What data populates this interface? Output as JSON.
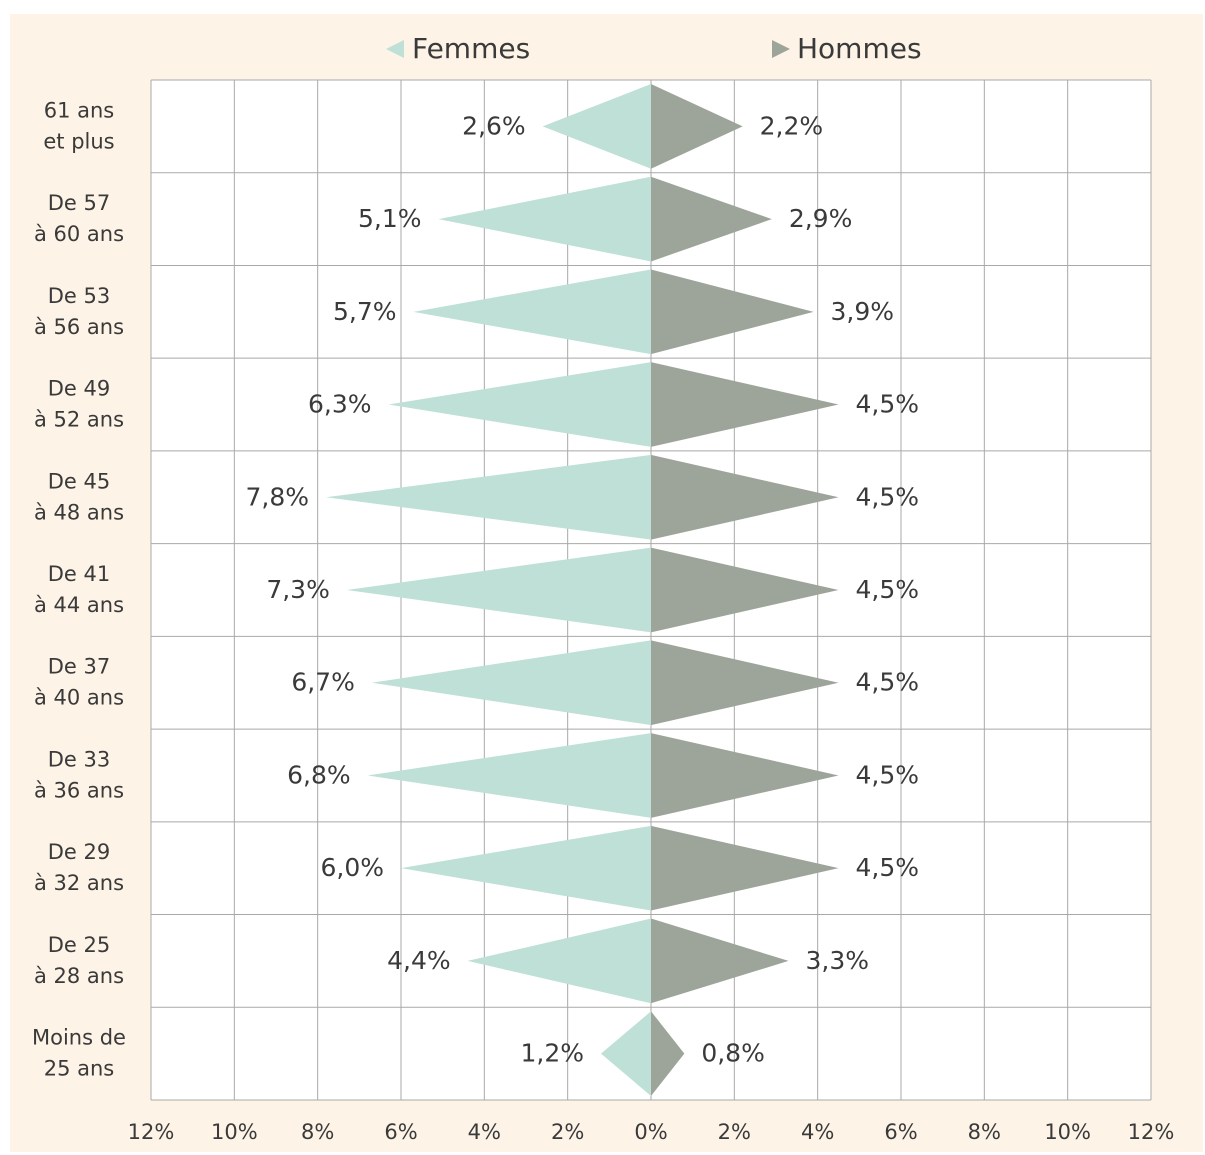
{
  "chart_data": {
    "type": "population-pyramid",
    "legend": {
      "placement": "top-center",
      "items": [
        {
          "name": "Femmes",
          "color": "#bfe0d7",
          "icon": "left-triangle-icon"
        },
        {
          "name": "Hommes",
          "color": "#9da59b",
          "icon": "right-triangle-icon"
        }
      ]
    },
    "categories": [
      [
        "61 ans",
        "et plus"
      ],
      [
        "De 57",
        "à 60 ans"
      ],
      [
        "De 53",
        "à 56 ans"
      ],
      [
        "De 49",
        "à 52 ans"
      ],
      [
        "De 45",
        "à 48 ans"
      ],
      [
        "De 41",
        "à 44 ans"
      ],
      [
        "De 37",
        "à 40 ans"
      ],
      [
        "De 33",
        "à 36 ans"
      ],
      [
        "De 29",
        "à 32 ans"
      ],
      [
        "De 25",
        "à 28 ans"
      ],
      [
        "Moins de",
        "25 ans"
      ]
    ],
    "series": [
      {
        "name": "Femmes",
        "color": "#bfe0d7",
        "values": [
          2.6,
          5.1,
          5.7,
          6.3,
          7.8,
          7.3,
          6.7,
          6.8,
          6.0,
          4.4,
          1.2
        ],
        "labels": [
          "2,6%",
          "5,1%",
          "5,7%",
          "6,3%",
          "7,8%",
          "7,3%",
          "6,7%",
          "6,8%",
          "6,0%",
          "4,4%",
          "1,2%"
        ]
      },
      {
        "name": "Hommes",
        "color": "#9da59b",
        "values": [
          2.2,
          2.9,
          3.9,
          4.5,
          4.5,
          4.5,
          4.5,
          4.5,
          4.5,
          3.3,
          0.8
        ],
        "labels": [
          "2,2%",
          "2,9%",
          "3,9%",
          "4,5%",
          "4,5%",
          "4,5%",
          "4,5%",
          "4,5%",
          "4,5%",
          "3,3%",
          "0,8%"
        ]
      }
    ],
    "x_ticks": [
      {
        "value": -12,
        "label": "12%"
      },
      {
        "value": -10,
        "label": "10%"
      },
      {
        "value": -8,
        "label": "8%"
      },
      {
        "value": -6,
        "label": "6%"
      },
      {
        "value": -4,
        "label": "4%"
      },
      {
        "value": -2,
        "label": "2%"
      },
      {
        "value": 0,
        "label": "0%"
      },
      {
        "value": 2,
        "label": "2%"
      },
      {
        "value": 4,
        "label": "4%"
      },
      {
        "value": 6,
        "label": "6%"
      },
      {
        "value": 8,
        "label": "8%"
      },
      {
        "value": 10,
        "label": "10%"
      },
      {
        "value": 12,
        "label": "12%"
      }
    ],
    "xlim": [
      -12,
      12
    ],
    "grid": true
  }
}
